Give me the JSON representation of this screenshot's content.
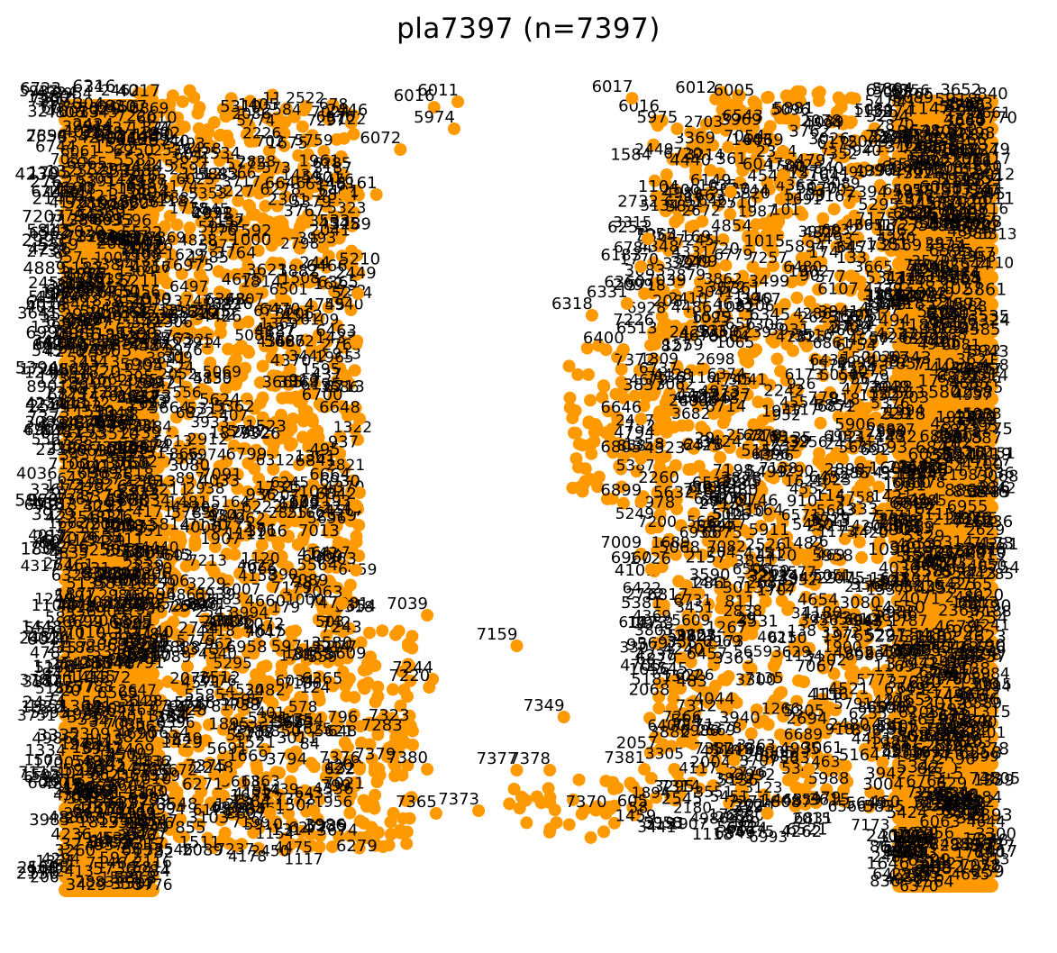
{
  "chart_data": {
    "type": "scatter",
    "title": "pla7397  (n=7397)",
    "marker_color": "#FF9900",
    "label_color": "#000000",
    "axes_visible": false,
    "grid": false,
    "point_count_printed": 7397,
    "readable_points": [
      {
        "label": "6016",
        "x": 0.4125,
        "y": 0.0206
      },
      {
        "label": "6011",
        "x": 0.4374,
        "y": 0.0141
      },
      {
        "label": "6017",
        "x": 0.6197,
        "y": 0.0098
      },
      {
        "label": "6012",
        "x": 0.7071,
        "y": 0.0108
      },
      {
        "label": "6005",
        "x": 0.7469,
        "y": 0.0141
      },
      {
        "label": "5974",
        "x": 0.4336,
        "y": 0.0465
      },
      {
        "label": "5975",
        "x": 0.6667,
        "y": 0.0465
      },
      {
        "label": "6072",
        "x": 0.3773,
        "y": 0.0714
      },
      {
        "label": "6069",
        "x": 0.7774,
        "y": 0.0736
      },
      {
        "label": "6047",
        "x": 0.7774,
        "y": 0.1027
      },
      {
        "label": "6148",
        "x": 0.3199,
        "y": 0.1265
      },
      {
        "label": "6161",
        "x": 0.3522,
        "y": 0.1254
      },
      {
        "label": "6149",
        "x": 0.7227,
        "y": 0.1222
      },
      {
        "label": "6253",
        "x": 0.6362,
        "y": 0.1784
      },
      {
        "label": "6183",
        "x": 0.6289,
        "y": 0.2119
      },
      {
        "label": "6365",
        "x": 0.3328,
        "y": 0.2443
      },
      {
        "label": "6360",
        "x": 0.6325,
        "y": 0.2443
      },
      {
        "label": "6331",
        "x": 0.6143,
        "y": 0.2562
      },
      {
        "label": "6318",
        "x": 0.5777,
        "y": 0.2703
      },
      {
        "label": "6463",
        "x": 0.3309,
        "y": 0.3027
      },
      {
        "label": "6400",
        "x": 0.6106,
        "y": 0.3114
      },
      {
        "label": "6700",
        "x": 0.3164,
        "y": 0.3795
      },
      {
        "label": "6648",
        "x": 0.3346,
        "y": 0.3946
      },
      {
        "label": "6646",
        "x": 0.6289,
        "y": 0.3946
      },
      {
        "label": "6805",
        "x": 0.6289,
        "y": 0.4422
      },
      {
        "label": "6930",
        "x": 0.3346,
        "y": 0.4832
      },
      {
        "label": "6842",
        "x": 0.3309,
        "y": 0.4984
      },
      {
        "label": "6899",
        "x": 0.6289,
        "y": 0.4941
      },
      {
        "label": "7013",
        "x": 0.3128,
        "y": 0.5427
      },
      {
        "label": "7009",
        "x": 0.6289,
        "y": 0.5568
      },
      {
        "label": "6963",
        "x": 0.3309,
        "y": 0.5762
      },
      {
        "label": "6960",
        "x": 0.6397,
        "y": 0.5751
      },
      {
        "label": "7063",
        "x": 0.3164,
        "y": 0.6162
      },
      {
        "label": "7039",
        "x": 0.4054,
        "y": 0.6303
      },
      {
        "label": "7159",
        "x": 0.4991,
        "y": 0.667
      },
      {
        "label": "7244",
        "x": 0.411,
        "y": 0.707
      },
      {
        "label": "7220",
        "x": 0.4074,
        "y": 0.7168
      },
      {
        "label": "7349",
        "x": 0.5483,
        "y": 0.7524
      },
      {
        "label": "7323",
        "x": 0.3861,
        "y": 0.7643
      },
      {
        "label": "7283",
        "x": 0.3787,
        "y": 0.7762
      },
      {
        "label": "7375",
        "x": 0.1949,
        "y": 0.8249
      },
      {
        "label": "7376",
        "x": 0.3346,
        "y": 0.8151
      },
      {
        "label": "7379",
        "x": 0.3717,
        "y": 0.8108
      },
      {
        "label": "7380",
        "x": 0.4054,
        "y": 0.8151
      },
      {
        "label": "7377",
        "x": 0.4991,
        "y": 0.8162
      },
      {
        "label": "7378",
        "x": 0.5336,
        "y": 0.8162
      },
      {
        "label": "7381",
        "x": 0.6325,
        "y": 0.8151
      },
      {
        "label": "7382",
        "x": 0.7264,
        "y": 0.8043
      },
      {
        "label": "7383",
        "x": 0.8049,
        "y": 0.8151
      },
      {
        "label": "7364",
        "x": 0.2409,
        "y": 0.8681
      },
      {
        "label": "7372",
        "x": 0.2869,
        "y": 0.8649
      },
      {
        "label": "7365",
        "x": 0.4146,
        "y": 0.8681
      },
      {
        "label": "7373",
        "x": 0.4591,
        "y": 0.8649
      },
      {
        "label": "7370",
        "x": 0.5924,
        "y": 0.8681
      },
      {
        "label": "7371",
        "x": 0.7612,
        "y": 0.8681
      },
      {
        "label": "3374",
        "x": 0.9509,
        "y": 0.8124
      }
    ]
  }
}
